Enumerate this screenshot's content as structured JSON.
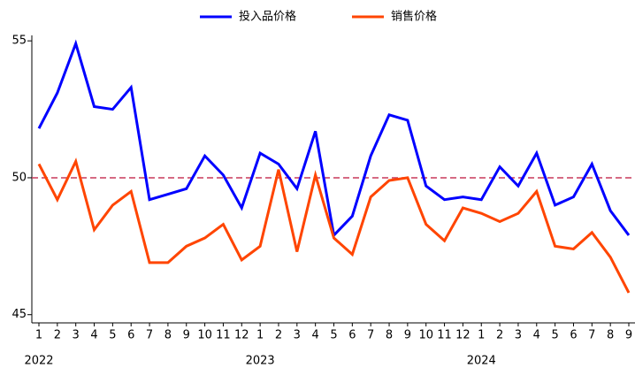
{
  "chart_data": {
    "type": "line",
    "categories": [
      "1",
      "2",
      "3",
      "4",
      "5",
      "6",
      "7",
      "8",
      "9",
      "10",
      "11",
      "12",
      "1",
      "2",
      "3",
      "4",
      "5",
      "6",
      "7",
      "8",
      "9",
      "10",
      "11",
      "12",
      "1",
      "2",
      "3",
      "4",
      "5",
      "6",
      "7",
      "8",
      "9"
    ],
    "x_groups": [
      {
        "label": "2022",
        "from": 0
      },
      {
        "label": "2023",
        "from": 12
      },
      {
        "label": "2024",
        "from": 24
      }
    ],
    "series": [
      {
        "name": "投入品价格",
        "color": "#0000ff",
        "values": [
          51.8,
          53.1,
          54.9,
          52.6,
          52.5,
          53.3,
          49.2,
          49.4,
          49.6,
          50.8,
          50.1,
          48.9,
          50.9,
          50.5,
          49.6,
          51.7,
          47.9,
          48.6,
          50.8,
          52.3,
          52.1,
          49.7,
          49.2,
          49.3,
          49.2,
          50.4,
          49.7,
          50.9,
          49.0,
          49.3,
          50.5,
          48.8,
          47.9
        ]
      },
      {
        "name": "销售价格",
        "color": "#ff4500",
        "values": [
          50.5,
          49.2,
          50.6,
          48.1,
          49.0,
          49.5,
          46.9,
          46.9,
          47.5,
          47.8,
          48.3,
          47.0,
          47.5,
          50.3,
          47.3,
          50.1,
          47.8,
          47.2,
          49.3,
          49.9,
          50.0,
          48.3,
          47.7,
          48.9,
          48.7,
          48.4,
          48.7,
          49.5,
          47.5,
          47.4,
          48.0,
          47.1,
          45.8
        ]
      }
    ],
    "reference_line": {
      "value": 50,
      "color": "#c8385a"
    },
    "ylim": [
      44.7,
      55.2
    ],
    "yticks": [
      45,
      50,
      55
    ],
    "legend": "top"
  }
}
